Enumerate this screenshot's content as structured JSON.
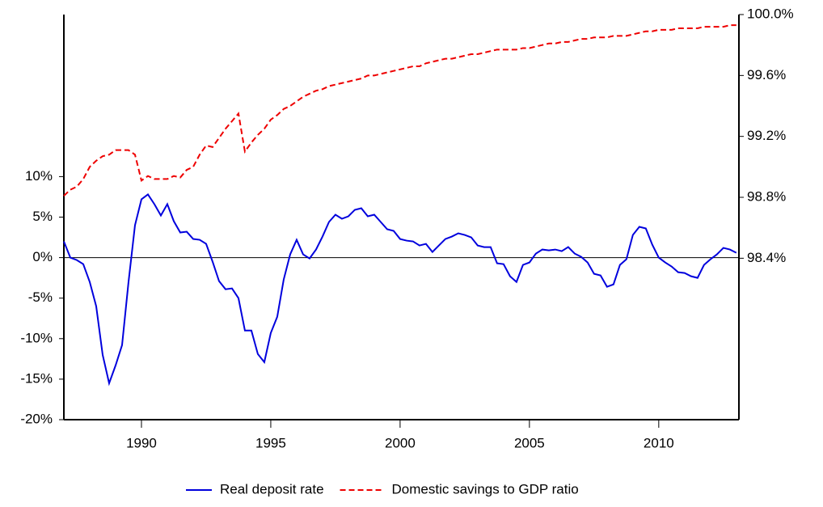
{
  "chart_data": {
    "type": "line",
    "x": [
      1987,
      1987.25,
      1987.5,
      1987.75,
      1988,
      1988.25,
      1988.5,
      1988.75,
      1989,
      1989.25,
      1989.5,
      1989.75,
      1990,
      1990.25,
      1990.5,
      1990.75,
      1991,
      1991.25,
      1991.5,
      1991.75,
      1992,
      1992.25,
      1992.5,
      1992.75,
      1993,
      1993.25,
      1993.5,
      1993.75,
      1994,
      1994.25,
      1994.5,
      1994.75,
      1995,
      1995.25,
      1995.5,
      1995.75,
      1996,
      1996.25,
      1996.5,
      1996.75,
      1997,
      1997.25,
      1997.5,
      1997.75,
      1998,
      1998.25,
      1998.5,
      1998.75,
      1999,
      1999.25,
      1999.5,
      1999.75,
      2000,
      2000.25,
      2000.5,
      2000.75,
      2001,
      2001.25,
      2001.5,
      2001.75,
      2002,
      2002.25,
      2002.5,
      2002.75,
      2003,
      2003.25,
      2003.5,
      2003.75,
      2004,
      2004.25,
      2004.5,
      2004.75,
      2005,
      2005.25,
      2005.5,
      2005.75,
      2006,
      2006.25,
      2006.5,
      2006.75,
      2007,
      2007.25,
      2007.5,
      2007.75,
      2008,
      2008.25,
      2008.5,
      2008.75,
      2009,
      2009.25,
      2009.5,
      2009.75,
      2010,
      2010.25,
      2010.5,
      2010.75,
      2011,
      2011.25,
      2011.5,
      2011.75,
      2012,
      2012.25,
      2012.5,
      2012.75,
      2013
    ],
    "series": [
      {
        "name": "Real deposit rate",
        "color": "#0000dd",
        "axis": "y",
        "values": [
          2,
          0,
          -0.3,
          -0.8,
          -3,
          -6,
          -12,
          -15.5,
          -13.3,
          -10.8,
          -3,
          4,
          7.2,
          7.8,
          6.6,
          5.2,
          6.6,
          4.5,
          3.1,
          3.2,
          2.3,
          2.2,
          1.7,
          -0.5,
          -2.9,
          -3.9,
          -3.8,
          -5,
          -9,
          -9,
          -11.9,
          -12.9,
          -9.3,
          -7.3,
          -2.7,
          0.4,
          2.2,
          0.4,
          -0.1,
          1,
          2.6,
          4.4,
          5.3,
          4.8,
          5.1,
          5.9,
          6.1,
          5.1,
          5.3,
          4.4,
          3.5,
          3.3,
          2.3,
          2.1,
          2.0,
          1.5,
          1.7,
          0.7,
          1.5,
          2.3,
          2.6,
          3.0,
          2.8,
          2.5,
          1.5,
          1.3,
          1.3,
          -0.7,
          -0.8,
          -2.3,
          -3.0,
          -0.9,
          -0.6,
          0.5,
          1.0,
          0.9,
          1.0,
          0.8,
          1.3,
          0.5,
          0.1,
          -0.6,
          -2.0,
          -2.2,
          -3.6,
          -3.3,
          -0.9,
          -0.2,
          2.8,
          3.8,
          3.6,
          1.6,
          0.0,
          -0.6,
          -1.1,
          -1.8,
          -1.9,
          -2.3,
          -2.5,
          -0.9,
          -0.2,
          0.4,
          1.2,
          1.0,
          0.6
        ]
      },
      {
        "name": "Domestic savings to GDP ratio",
        "color": "#ee0000",
        "axis": "y2",
        "dashed": true,
        "values": [
          98.81,
          98.85,
          98.87,
          98.92,
          99.0,
          99.04,
          99.07,
          99.08,
          99.11,
          99.11,
          99.11,
          99.08,
          98.91,
          98.94,
          98.92,
          98.92,
          98.92,
          98.94,
          98.93,
          98.98,
          99.0,
          99.08,
          99.14,
          99.13,
          99.19,
          99.25,
          99.3,
          99.35,
          99.1,
          99.16,
          99.21,
          99.25,
          99.31,
          99.34,
          99.38,
          99.4,
          99.43,
          99.46,
          99.48,
          99.5,
          99.51,
          99.53,
          99.54,
          99.55,
          99.56,
          99.57,
          99.58,
          99.6,
          99.6,
          99.61,
          99.62,
          99.63,
          99.64,
          99.65,
          99.66,
          99.66,
          99.68,
          99.69,
          99.7,
          99.71,
          99.71,
          99.72,
          99.73,
          99.74,
          99.74,
          99.75,
          99.76,
          99.77,
          99.77,
          99.77,
          99.77,
          99.78,
          99.78,
          99.79,
          99.8,
          99.81,
          99.81,
          99.82,
          99.82,
          99.83,
          99.84,
          99.84,
          99.85,
          99.85,
          99.85,
          99.86,
          99.86,
          99.86,
          99.87,
          99.88,
          99.89,
          99.89,
          99.9,
          99.9,
          99.9,
          99.91,
          99.91,
          99.91,
          99.91,
          99.92,
          99.92,
          99.92,
          99.92,
          99.93,
          99.93
        ]
      }
    ],
    "xlim": [
      1987,
      2013.1
    ],
    "xticks": [
      1990,
      1995,
      2000,
      2005,
      2010
    ],
    "ylim": [
      -20,
      30
    ],
    "yticks": [
      {
        "value": -20,
        "label": "-20%"
      },
      {
        "value": -15,
        "label": "-15%"
      },
      {
        "value": -10,
        "label": "-10%"
      },
      {
        "value": -5,
        "label": "-5%"
      },
      {
        "value": 0,
        "label": "0%"
      },
      {
        "value": 5,
        "label": "5%"
      },
      {
        "value": 10,
        "label": "10%"
      }
    ],
    "y2lim": [
      97.34,
      100.0
    ],
    "y2ticks": [
      {
        "value": 98.4,
        "label": "98.4%"
      },
      {
        "value": 98.8,
        "label": "98.8%"
      },
      {
        "value": 99.2,
        "label": "99.2%"
      },
      {
        "value": 99.6,
        "label": "99.6%"
      },
      {
        "value": 100.0,
        "label": "100.0%"
      }
    ],
    "legend": "bottom"
  }
}
